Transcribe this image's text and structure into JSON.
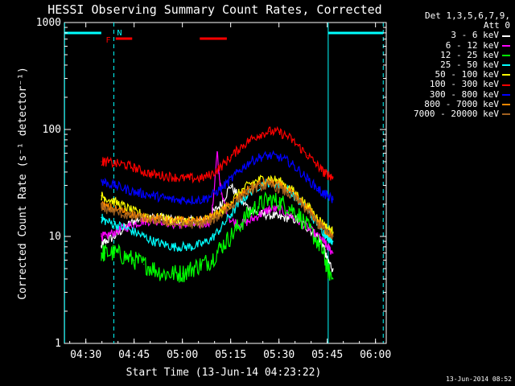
{
  "chart_data": {
    "type": "line",
    "title": "HESSI Observing Summary Count Rates, Corrected",
    "xlabel": "Start Time (13-Jun-14 04:23:22)",
    "ylabel": "Corrected Count Rate (s⁻¹ detector⁻¹)",
    "yscale": "log",
    "ylim": [
      1,
      1000
    ],
    "xlim": [
      4.3889,
      6.0556
    ],
    "x_ticks": [
      "04:30",
      "04:45",
      "05:00",
      "05:15",
      "05:30",
      "05:45",
      "06:00"
    ],
    "y_ticks": [
      "1",
      "10",
      "100",
      "1000"
    ],
    "legend_header": [
      "Det 1,3,5,6,7,9,",
      "Att 0"
    ],
    "legend_position": "outside-right",
    "colors": {
      "background": "#000000",
      "axes": "#ffffff",
      "marker": "#00ffff",
      "flare": "#ff0000"
    },
    "markers": {
      "night_label": "N",
      "flare_label": "F"
    },
    "series": [
      {
        "name": "3 - 6 keV",
        "color": "#ffffff",
        "x": [
          4.58,
          4.6,
          4.65,
          4.7,
          4.75,
          4.8,
          4.85,
          4.9,
          4.95,
          5.0,
          5.05,
          5.1,
          5.15,
          5.2,
          5.25,
          5.3,
          5.35,
          5.4,
          5.45,
          5.5,
          5.55,
          5.6,
          5.65,
          5.7,
          5.73,
          5.75,
          5.78
        ],
        "y": [
          8,
          9,
          10,
          12,
          14,
          15,
          15,
          15,
          14,
          14,
          14,
          14,
          16,
          20,
          30,
          22,
          18,
          16,
          16,
          15,
          15,
          14,
          12,
          10,
          8,
          6,
          5
        ]
      },
      {
        "name": "6 - 12 keV",
        "color": "#ff00ff",
        "x": [
          4.58,
          4.6,
          4.65,
          4.7,
          4.75,
          4.8,
          4.85,
          4.9,
          4.95,
          5.0,
          5.05,
          5.1,
          5.15,
          5.18,
          5.2,
          5.25,
          5.3,
          5.35,
          5.4,
          5.45,
          5.5,
          5.55,
          5.6,
          5.65,
          5.7,
          5.73,
          5.75,
          5.78
        ],
        "y": [
          10,
          10,
          11,
          12,
          13,
          14,
          14,
          14,
          13,
          13,
          13,
          13,
          14,
          60,
          25,
          14,
          13,
          14,
          16,
          18,
          18,
          16,
          14,
          12,
          10,
          9,
          8,
          7
        ]
      },
      {
        "name": "12 - 25 keV",
        "color": "#00ff00",
        "x": [
          4.58,
          4.6,
          4.65,
          4.7,
          4.75,
          4.8,
          4.85,
          4.9,
          4.95,
          5.0,
          5.05,
          5.1,
          5.15,
          5.2,
          5.25,
          5.3,
          5.35,
          5.4,
          5.45,
          5.5,
          5.55,
          5.6,
          5.65,
          5.7,
          5.73,
          5.75,
          5.78
        ],
        "y": [
          7,
          7,
          7,
          6.5,
          6,
          5.5,
          5,
          4.5,
          4.5,
          4.5,
          5,
          5.5,
          6,
          8,
          10,
          13,
          17,
          20,
          22,
          21,
          19,
          16,
          12,
          9,
          7,
          5,
          4
        ]
      },
      {
        "name": "25 - 50 keV",
        "color": "#00ffff",
        "x": [
          4.58,
          4.6,
          4.65,
          4.7,
          4.75,
          4.8,
          4.85,
          4.9,
          4.95,
          5.0,
          5.05,
          5.1,
          5.15,
          5.2,
          5.25,
          5.3,
          5.35,
          5.4,
          5.45,
          5.5,
          5.55,
          5.6,
          5.65,
          5.7,
          5.73,
          5.75,
          5.78
        ],
        "y": [
          15,
          14,
          13,
          12,
          11,
          10,
          9,
          8.5,
          8,
          8,
          8,
          8.5,
          9.5,
          12,
          16,
          21,
          26,
          30,
          32,
          30,
          27,
          22,
          17,
          13,
          11,
          10,
          9
        ]
      },
      {
        "name": "50 - 100 keV",
        "color": "#ffff00",
        "x": [
          4.58,
          4.6,
          4.65,
          4.7,
          4.75,
          4.8,
          4.85,
          4.9,
          4.95,
          5.0,
          5.05,
          5.1,
          5.15,
          5.2,
          5.25,
          5.3,
          5.35,
          5.4,
          5.45,
          5.5,
          5.55,
          5.6,
          5.65,
          5.7,
          5.73,
          5.75,
          5.78
        ],
        "y": [
          24,
          23,
          21,
          19,
          17,
          16,
          15,
          15,
          14,
          14,
          14,
          14,
          15,
          17,
          21,
          26,
          31,
          34,
          35,
          33,
          29,
          24,
          19,
          15,
          13,
          12,
          11
        ]
      },
      {
        "name": "100 - 300 keV",
        "color": "#ff0000",
        "x": [
          4.58,
          4.6,
          4.65,
          4.7,
          4.75,
          4.8,
          4.85,
          4.9,
          4.95,
          5.0,
          5.05,
          5.1,
          5.15,
          5.2,
          5.25,
          5.3,
          5.35,
          5.4,
          5.45,
          5.5,
          5.55,
          5.6,
          5.65,
          5.7,
          5.73,
          5.75,
          5.78
        ],
        "y": [
          50,
          50,
          48,
          47,
          44,
          40,
          38,
          37,
          36,
          35,
          35,
          35,
          38,
          45,
          55,
          68,
          80,
          90,
          96,
          94,
          85,
          70,
          57,
          46,
          40,
          38,
          36
        ]
      },
      {
        "name": "300 - 800 keV",
        "color": "#0000ff",
        "x": [
          4.58,
          4.6,
          4.65,
          4.7,
          4.75,
          4.8,
          4.85,
          4.9,
          4.95,
          5.0,
          5.05,
          5.1,
          5.15,
          5.2,
          5.25,
          5.3,
          5.35,
          5.4,
          5.45,
          5.5,
          5.55,
          5.6,
          5.65,
          5.7,
          5.73,
          5.75,
          5.78
        ],
        "y": [
          33,
          32,
          30,
          28,
          26,
          25,
          24,
          23,
          22,
          22,
          22,
          22,
          24,
          28,
          34,
          42,
          50,
          55,
          57,
          55,
          50,
          42,
          34,
          28,
          25,
          24,
          22
        ]
      },
      {
        "name": "800 - 7000 keV",
        "color": "#ff8800",
        "x": [
          4.58,
          4.6,
          4.65,
          4.7,
          4.75,
          4.8,
          4.85,
          4.9,
          4.95,
          5.0,
          5.05,
          5.1,
          5.15,
          5.2,
          5.25,
          5.3,
          5.35,
          5.4,
          5.45,
          5.5,
          5.55,
          5.6,
          5.65,
          5.7,
          5.73,
          5.75,
          5.78
        ],
        "y": [
          20,
          19,
          18,
          17,
          16,
          15,
          15,
          14,
          14,
          14,
          14,
          14,
          15,
          17,
          20,
          24,
          28,
          31,
          32,
          30,
          27,
          22,
          18,
          14,
          12,
          11,
          10
        ]
      },
      {
        "name": "7000 - 20000 keV",
        "color": "#a06020",
        "x": [
          4.58,
          4.6,
          4.65,
          4.7,
          4.75,
          4.8,
          4.85,
          4.9,
          4.95,
          5.0,
          5.05,
          5.1,
          5.15,
          5.2,
          5.25,
          5.3,
          5.35,
          5.4,
          5.45,
          5.5,
          5.55,
          5.6,
          5.65,
          5.7,
          5.73,
          5.75,
          5.78
        ],
        "y": [
          19,
          18,
          17,
          16,
          15,
          15,
          14,
          14,
          13,
          13,
          13,
          13,
          14,
          16,
          19,
          23,
          27,
          29,
          30,
          28,
          25,
          21,
          17,
          13,
          12,
          11,
          10
        ]
      }
    ]
  },
  "footer": {
    "stamp": "13-Jun-2014 08:52"
  }
}
